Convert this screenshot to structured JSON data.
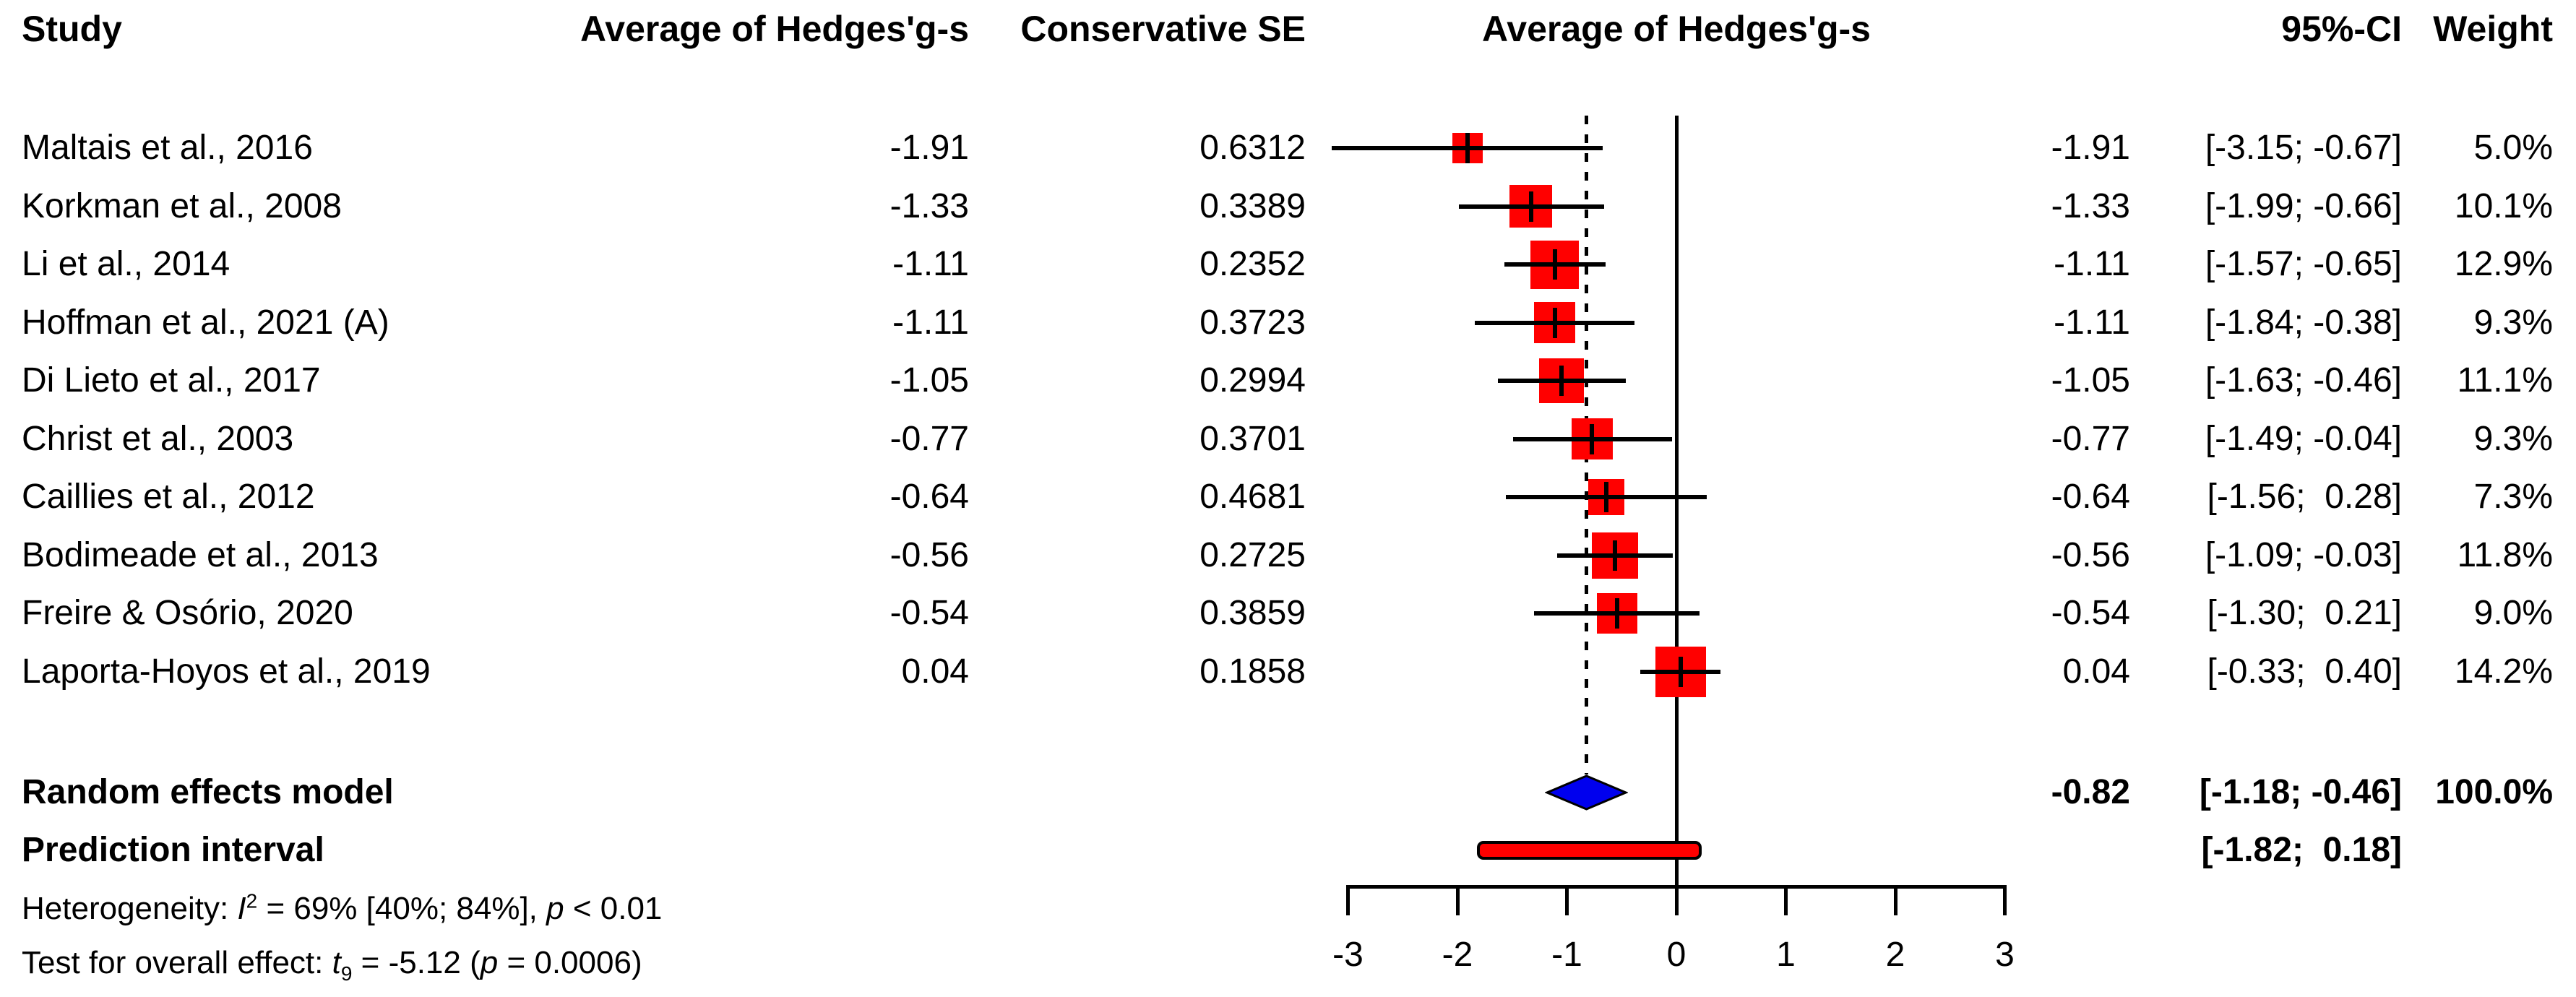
{
  "header": {
    "study": "Study",
    "avg_hedges": "Average of Hedges'g-s",
    "conservative_se": "Conservative SE",
    "plot_title": "Average of Hedges'g-s",
    "ci": "95%-CI",
    "weight": "Weight"
  },
  "studies": [
    {
      "name": "Maltais et al., 2016",
      "avg": "-1.91",
      "se": "0.6312",
      "effect": "-1.91",
      "ci": "[-3.15; -0.67]",
      "weight": "5.0%"
    },
    {
      "name": "Korkman et al., 2008",
      "avg": "-1.33",
      "se": "0.3389",
      "effect": "-1.33",
      "ci": "[-1.99; -0.66]",
      "weight": "10.1%"
    },
    {
      "name": "Li et al., 2014",
      "avg": "-1.11",
      "se": "0.2352",
      "effect": "-1.11",
      "ci": "[-1.57; -0.65]",
      "weight": "12.9%"
    },
    {
      "name": "Hoffman et al., 2021 (A)",
      "avg": "-1.11",
      "se": "0.3723",
      "effect": "-1.11",
      "ci": "[-1.84; -0.38]",
      "weight": "9.3%"
    },
    {
      "name": "Di Lieto et al., 2017",
      "avg": "-1.05",
      "se": "0.2994",
      "effect": "-1.05",
      "ci": "[-1.63; -0.46]",
      "weight": "11.1%"
    },
    {
      "name": "Christ et al., 2003",
      "avg": "-0.77",
      "se": "0.3701",
      "effect": "-0.77",
      "ci": "[-1.49; -0.04]",
      "weight": "9.3%"
    },
    {
      "name": "Caillies et al., 2012",
      "avg": "-0.64",
      "se": "0.4681",
      "effect": "-0.64",
      "ci": "[-1.56;  0.28]",
      "weight": "7.3%"
    },
    {
      "name": "Bodimeade et al., 2013",
      "avg": "-0.56",
      "se": "0.2725",
      "effect": "-0.56",
      "ci": "[-1.09; -0.03]",
      "weight": "11.8%"
    },
    {
      "name": "Freire & Osório, 2020",
      "avg": "-0.54",
      "se": "0.3859",
      "effect": "-0.54",
      "ci": "[-1.30;  0.21]",
      "weight": "9.0%"
    },
    {
      "name": "Laporta-Hoyos et al., 2019",
      "avg": "0.04",
      "se": "0.1858",
      "effect": "0.04",
      "ci": "[-0.33;  0.40]",
      "weight": "14.2%"
    }
  ],
  "summary": {
    "random_label": "Random effects model",
    "random_effect": "-0.82",
    "random_ci": "[-1.18; -0.46]",
    "random_weight": "100.0%",
    "prediction_label": "Prediction interval",
    "prediction_ci": "[-1.82;  0.18]"
  },
  "footnotes": {
    "het": {
      "prefix": "Heterogeneity: ",
      "i": "I",
      "sup": "2",
      "mid": " = 69% [40%; 84%], ",
      "p": "p",
      "suffix": " < 0.01"
    },
    "test": {
      "prefix": "Test for overall effect: ",
      "t": "t",
      "sub": "9",
      "mid": " = -5.12 (",
      "p": "p",
      "suffix": " = 0.0006)"
    }
  },
  "colors": {
    "square": "#ff0000",
    "diamond": "#0000ee",
    "prediction_fill": "#ff0000",
    "prediction_border": "#000000",
    "line": "#000000"
  },
  "chart_data": {
    "type": "forest",
    "title": "Average of Hedges'g-s",
    "columns": [
      "Study",
      "Average of Hedges'g-s",
      "Conservative SE",
      "Average of Hedges'g-s",
      "95%-CI",
      "Weight"
    ],
    "studies": [
      {
        "label": "Maltais et al., 2016",
        "mean": -1.91,
        "conservative_se": 0.6312,
        "estimate": -1.91,
        "ci95": [
          -3.15,
          -0.67
        ],
        "weight_pct": 5.0
      },
      {
        "label": "Korkman et al., 2008",
        "mean": -1.33,
        "conservative_se": 0.3389,
        "estimate": -1.33,
        "ci95": [
          -1.99,
          -0.66
        ],
        "weight_pct": 10.1
      },
      {
        "label": "Li et al., 2014",
        "mean": -1.11,
        "conservative_se": 0.2352,
        "estimate": -1.11,
        "ci95": [
          -1.57,
          -0.65
        ],
        "weight_pct": 12.9
      },
      {
        "label": "Hoffman et al., 2021 (A)",
        "mean": -1.11,
        "conservative_se": 0.3723,
        "estimate": -1.11,
        "ci95": [
          -1.84,
          -0.38
        ],
        "weight_pct": 9.3
      },
      {
        "label": "Di Lieto et al., 2017",
        "mean": -1.05,
        "conservative_se": 0.2994,
        "estimate": -1.05,
        "ci95": [
          -1.63,
          -0.46
        ],
        "weight_pct": 11.1
      },
      {
        "label": "Christ et al., 2003",
        "mean": -0.77,
        "conservative_se": 0.3701,
        "estimate": -0.77,
        "ci95": [
          -1.49,
          -0.04
        ],
        "weight_pct": 9.3
      },
      {
        "label": "Caillies et al., 2012",
        "mean": -0.64,
        "conservative_se": 0.4681,
        "estimate": -0.64,
        "ci95": [
          -1.56,
          0.28
        ],
        "weight_pct": 7.3
      },
      {
        "label": "Bodimeade et al., 2013",
        "mean": -0.56,
        "conservative_se": 0.2725,
        "estimate": -0.56,
        "ci95": [
          -1.09,
          -0.03
        ],
        "weight_pct": 11.8
      },
      {
        "label": "Freire & Osório, 2020",
        "mean": -0.54,
        "conservative_se": 0.3859,
        "estimate": -0.54,
        "ci95": [
          -1.3,
          0.21
        ],
        "weight_pct": 9.0
      },
      {
        "label": "Laporta-Hoyos et al., 2019",
        "mean": 0.04,
        "conservative_se": 0.1858,
        "estimate": 0.04,
        "ci95": [
          -0.33,
          0.4
        ],
        "weight_pct": 14.2
      }
    ],
    "pooled": {
      "label": "Random effects model",
      "estimate": -0.82,
      "ci95": [
        -1.18,
        -0.46
      ],
      "weight_pct": 100.0
    },
    "prediction_interval": [
      -1.82,
      0.18
    ],
    "heterogeneity": {
      "I2_pct": 69,
      "I2_ci_pct": [
        40,
        84
      ],
      "p": "< 0.01"
    },
    "overall_effect_test": {
      "statistic": "t",
      "df": 9,
      "value": -5.12,
      "p": 0.0006
    },
    "x_axis": {
      "ticks": [
        -3,
        -2,
        -1,
        0,
        1,
        2,
        3
      ],
      "range": [
        -3,
        3
      ],
      "reference_line": 0,
      "pooled_line": -0.82
    },
    "grid": false,
    "legend_position": "none"
  }
}
